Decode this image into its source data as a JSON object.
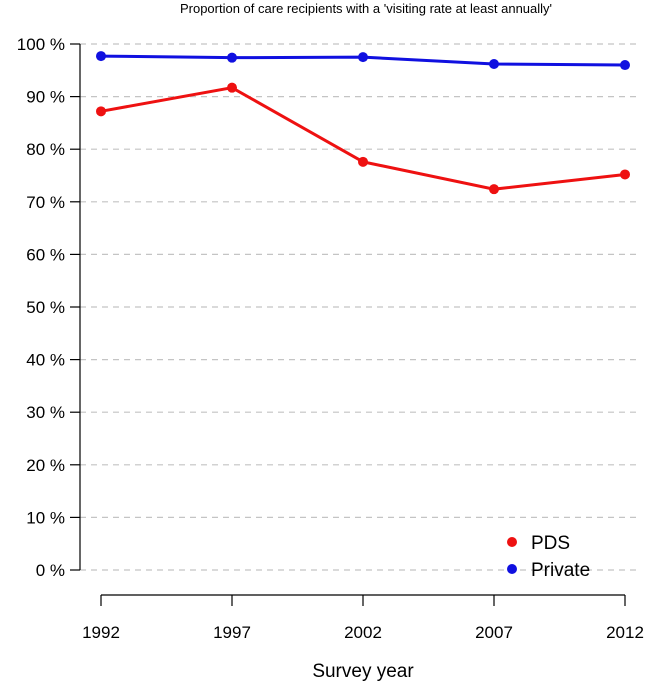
{
  "chart_data": {
    "type": "line",
    "title": "Proportion of care recipients  with a 'visiting rate at least annually'",
    "xlabel": "Survey year",
    "ylabel": "",
    "x": [
      1992,
      1997,
      2002,
      2007,
      2012
    ],
    "x_tick_labels": [
      "1992",
      "1997",
      "2002",
      "2007",
      "2012"
    ],
    "ylim": [
      0,
      100
    ],
    "y_ticks": [
      0,
      10,
      20,
      30,
      40,
      50,
      60,
      70,
      80,
      90,
      100
    ],
    "y_tick_labels": [
      "0 %",
      "10 %",
      "20 %",
      "30 %",
      "40 %",
      "50 %",
      "60 %",
      "70 %",
      "80 %",
      "90 %",
      "100 %"
    ],
    "grid": "horizontal dashed",
    "legend_position": "bottom-right",
    "series": [
      {
        "name": "PDS",
        "color": "#ee1111",
        "values": [
          87.2,
          91.7,
          77.6,
          72.4,
          75.2
        ]
      },
      {
        "name": "Private",
        "color": "#1010e0",
        "values": [
          97.7,
          97.4,
          97.5,
          96.2,
          96.0
        ]
      }
    ]
  }
}
